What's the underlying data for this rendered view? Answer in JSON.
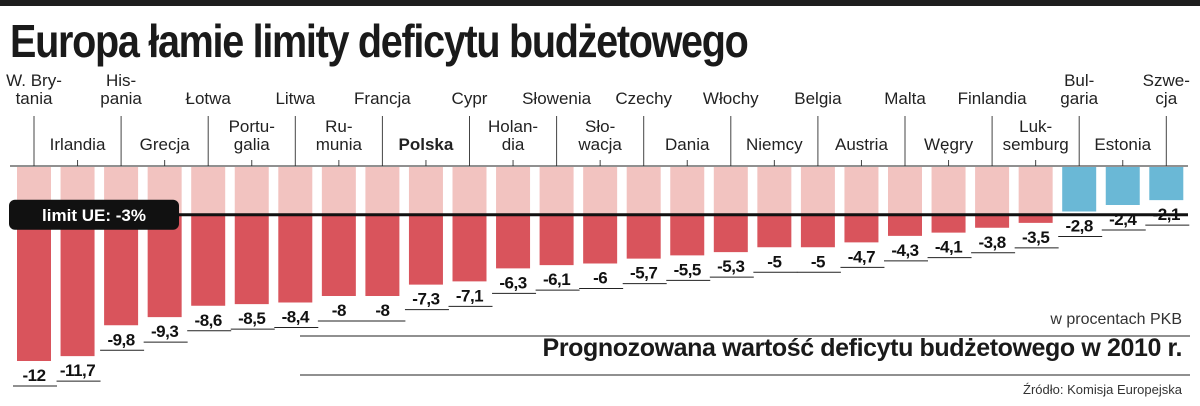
{
  "header": {
    "title": "Europa łamie limity deficytu budżetowego",
    "subtitle": "Prognozowana wartość deficytu budżetowego w 2010 r.",
    "unit_note": "w procentach PKB",
    "source": "Źródło: Komisja Europejska"
  },
  "limit": {
    "label": "limit UE: -3%",
    "value": -3
  },
  "colors": {
    "over_limit": "#d9545c",
    "over_limit_light": "#f2c3c0",
    "within_limit": "#6ab8d6",
    "within_limit_light": "#bfe2ee",
    "highlight": "#111111"
  },
  "chart_data": {
    "type": "bar",
    "categories": [
      "W. Brytania",
      "Irlandia",
      "Hiszpania",
      "Grecja",
      "Łotwa",
      "Portugalia",
      "Litwa",
      "Rumunia",
      "Francja",
      "Polska",
      "Cypr",
      "Holandia",
      "Słowenia",
      "Słowacja",
      "Czechy",
      "Dania",
      "Włochy",
      "Niemcy",
      "Belgia",
      "Austria",
      "Malta",
      "Węgry",
      "Finlandia",
      "Luksemburg",
      "Bułgaria",
      "Estonia",
      "Szwecja"
    ],
    "category_labels": [
      [
        "W. Bry-",
        "tania"
      ],
      [
        "Irlandia"
      ],
      [
        "His-",
        "pania"
      ],
      [
        "Grecja"
      ],
      [
        "Łotwa"
      ],
      [
        "Portu-",
        "galia"
      ],
      [
        "Litwa"
      ],
      [
        "Ru-",
        "munia"
      ],
      [
        "Francja"
      ],
      [
        "Polska"
      ],
      [
        "Cypr"
      ],
      [
        "Holan-",
        "dia"
      ],
      [
        "Słowenia"
      ],
      [
        "Sło-",
        "wacja"
      ],
      [
        "Czechy"
      ],
      [
        "Dania"
      ],
      [
        "Włochy"
      ],
      [
        "Niemcy"
      ],
      [
        "Belgia"
      ],
      [
        "Austria"
      ],
      [
        "Malta"
      ],
      [
        "Węgry"
      ],
      [
        "Finlandia"
      ],
      [
        "Luk-",
        "semburg"
      ],
      [
        "Bul-",
        "garia"
      ],
      [
        "Estonia"
      ],
      [
        "Szwe-",
        "cja"
      ]
    ],
    "value_labels": [
      "-12",
      "-11,7",
      "-9,8",
      "-9,3",
      "-8,6",
      "-8,5",
      "-8,4",
      "-8",
      "-8",
      "-7,3",
      "-7,1",
      "-6,3",
      "-6,1",
      "-6",
      "-5,7",
      "-5,5",
      "-5,3",
      "-5",
      "-5",
      "-4,7",
      "-4,3",
      "-4,1",
      "-3,8",
      "-3,5",
      "-2,8",
      "-2,4",
      "-2,1"
    ],
    "values": [
      -12,
      -11.7,
      -9.8,
      -9.3,
      -8.6,
      -8.5,
      -8.4,
      -8,
      -8,
      -7.3,
      -7.1,
      -6.3,
      -6.1,
      -6,
      -5.7,
      -5.5,
      -5.3,
      -5,
      -5,
      -4.7,
      -4.3,
      -4.1,
      -3.8,
      -3.5,
      -2.8,
      -2.4,
      -2.1
    ],
    "highlighted": "Polska",
    "xlabel": "",
    "ylabel": "",
    "ylim": [
      -12,
      0
    ],
    "grid": false,
    "legend": "none"
  }
}
